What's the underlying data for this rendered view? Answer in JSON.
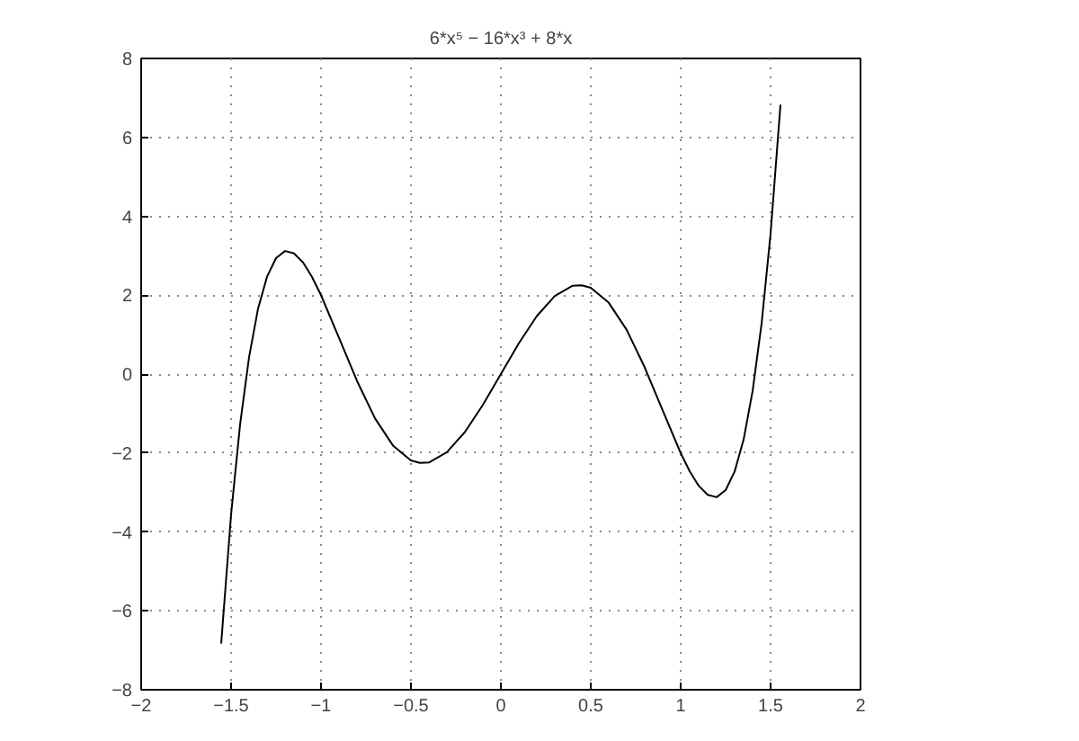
{
  "chart_data": {
    "type": "line",
    "title": "6*x⁵ − 16*x³ + 8*x",
    "x": [
      -1.555,
      -1.5,
      -1.45,
      -1.4,
      -1.35,
      -1.3,
      -1.25,
      -1.2,
      -1.15,
      -1.1,
      -1.05,
      -1.0,
      -0.9,
      -0.8,
      -0.7,
      -0.6,
      -0.5,
      -0.45,
      -0.4,
      -0.3,
      -0.2,
      -0.1,
      0,
      0.1,
      0.2,
      0.3,
      0.4,
      0.45,
      0.5,
      0.6,
      0.7,
      0.8,
      0.9,
      1.0,
      1.05,
      1.1,
      1.15,
      1.2,
      1.25,
      1.3,
      1.35,
      1.4,
      1.45,
      1.5,
      1.555
    ],
    "series": [
      {
        "color": "#000000",
        "values": [
          -6.83,
          -3.56,
          -1.28,
          0.43,
          1.66,
          2.47,
          2.94,
          3.12,
          3.06,
          2.83,
          2.46,
          2.0,
          0.92,
          -0.17,
          -1.12,
          -1.81,
          -2.19,
          -2.25,
          -2.24,
          -1.98,
          -1.47,
          -0.78,
          0,
          0.78,
          1.47,
          1.98,
          2.24,
          2.25,
          2.19,
          1.81,
          1.12,
          0.17,
          -0.92,
          -2.0,
          -2.46,
          -2.83,
          -3.06,
          -3.12,
          -2.94,
          -2.47,
          -1.66,
          -0.43,
          1.28,
          3.56,
          6.83
        ]
      }
    ],
    "xlim": [
      -2,
      2
    ],
    "ylim": [
      -8,
      8
    ],
    "xticks": [
      {
        "value": -2,
        "label": "−2"
      },
      {
        "value": -1.5,
        "label": "−1.5"
      },
      {
        "value": -1,
        "label": "−1"
      },
      {
        "value": -0.5,
        "label": "−0.5"
      },
      0,
      0.5,
      1,
      1.5,
      2
    ],
    "yticks": [
      {
        "value": -8,
        "label": "−8"
      },
      {
        "value": -6,
        "label": "−6"
      },
      {
        "value": -4,
        "label": "−4"
      },
      {
        "value": -2,
        "label": "−2"
      },
      0,
      2,
      4,
      6,
      8
    ],
    "grid": true,
    "line_style": "solid",
    "marker": "none"
  }
}
